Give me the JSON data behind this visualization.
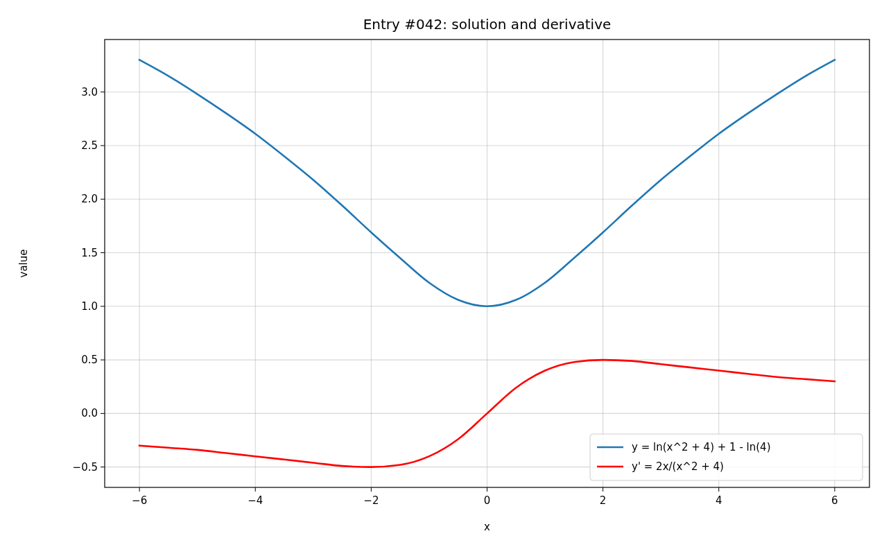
{
  "chart_data": {
    "type": "line",
    "title": "Entry #042: solution and derivative",
    "xlabel": "x",
    "ylabel": "value",
    "x": [
      -6,
      -5.5,
      -5,
      -4.5,
      -4,
      -3.5,
      -3,
      -2.5,
      -2,
      -1.5,
      -1,
      -0.5,
      0,
      0.5,
      1,
      1.5,
      2,
      2.5,
      3,
      3.5,
      4,
      4.5,
      5,
      5.5,
      6
    ],
    "series": [
      {
        "name": "y = ln(x^2 + 4) + 1 - ln(4)",
        "color": "#1f77b4",
        "values": [
          3.3,
          3.15,
          2.98,
          2.8,
          2.61,
          2.4,
          2.18,
          1.94,
          1.69,
          1.45,
          1.22,
          1.06,
          1,
          1.06,
          1.22,
          1.45,
          1.69,
          1.94,
          2.18,
          2.4,
          2.61,
          2.8,
          2.98,
          3.15,
          3.3
        ]
      },
      {
        "name": "y' = 2x/(x^2 + 4)",
        "color": "#ff0000",
        "values": [
          -0.3,
          -0.32,
          -0.34,
          -0.37,
          -0.4,
          -0.43,
          -0.46,
          -0.49,
          -0.5,
          -0.48,
          -0.4,
          -0.24,
          0,
          0.24,
          0.4,
          0.48,
          0.5,
          0.49,
          0.46,
          0.43,
          0.4,
          0.37,
          0.34,
          0.32,
          0.3
        ]
      }
    ],
    "xlim": [
      -6.6,
      6.6
    ],
    "ylim": [
      -0.69,
      3.49
    ],
    "xticks": [
      {
        "value": -6,
        "label": "−6"
      },
      {
        "value": -4,
        "label": "−4"
      },
      {
        "value": -2,
        "label": "−2"
      },
      0,
      2,
      4,
      6
    ],
    "yticks": [
      {
        "value": -0.5,
        "label": "−0.5"
      },
      {
        "value": 0,
        "label": "0.0"
      },
      0.5,
      {
        "value": 1,
        "label": "1.0"
      },
      1.5,
      {
        "value": 2,
        "label": "2.0"
      },
      2.5,
      {
        "value": 3,
        "label": "3.0"
      }
    ],
    "grid": true,
    "legend": "bottom right",
    "line_style": "solid",
    "marker": "none"
  }
}
